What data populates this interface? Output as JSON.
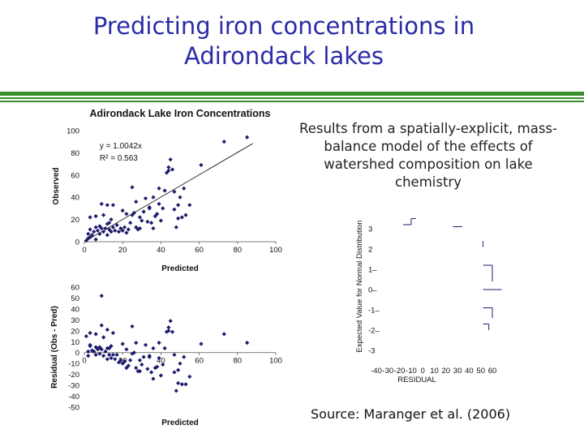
{
  "slide": {
    "title_lines": [
      "Predicting iron concentrations in",
      "Adirondack lakes"
    ],
    "description": "Results from a spatially-explicit, mass-balance model of the effects of watershed composition on lake chemistry",
    "source": "Source:  Maranger et al. (2006)",
    "colors": {
      "title": "#2b2ba8",
      "rule": "#3a8f2e",
      "points": "#1c1c6e"
    }
  },
  "chart_data": [
    {
      "type": "scatter",
      "title": "Adirondack Lake Iron Concentrations",
      "xlabel": "Predicted",
      "ylabel": "Observed",
      "xlim": [
        0,
        100
      ],
      "ylim": [
        0,
        100
      ],
      "xticks": [
        0,
        20,
        40,
        60,
        80,
        100
      ],
      "yticks": [
        0,
        20,
        40,
        60,
        80,
        100
      ],
      "annotations": [
        "y = 1.0042x",
        "R² = 0.563"
      ],
      "trendline": {
        "slope": 1.0042,
        "intercept": 0
      },
      "points": [
        [
          1,
          1
        ],
        [
          2,
          3
        ],
        [
          2,
          7
        ],
        [
          3,
          4
        ],
        [
          4,
          6
        ],
        [
          3,
          11
        ],
        [
          5,
          9
        ],
        [
          6,
          13
        ],
        [
          6,
          2
        ],
        [
          7,
          10
        ],
        [
          8,
          14
        ],
        [
          8,
          7
        ],
        [
          9,
          12
        ],
        [
          10,
          9
        ],
        [
          10,
          24
        ],
        [
          11,
          12
        ],
        [
          12,
          16
        ],
        [
          12,
          6
        ],
        [
          13,
          11
        ],
        [
          14,
          9
        ],
        [
          14,
          20
        ],
        [
          15,
          13
        ],
        [
          16,
          10
        ],
        [
          17,
          15
        ],
        [
          18,
          9
        ],
        [
          19,
          12
        ],
        [
          20,
          10
        ],
        [
          21,
          13
        ],
        [
          22,
          8
        ],
        [
          23,
          11
        ],
        [
          24,
          17
        ],
        [
          25,
          24
        ],
        [
          26,
          26
        ],
        [
          27,
          13
        ],
        [
          28,
          11
        ],
        [
          29,
          22
        ],
        [
          30,
          19
        ],
        [
          31,
          27
        ],
        [
          32,
          39
        ],
        [
          33,
          18
        ],
        [
          34,
          30
        ],
        [
          35,
          17
        ],
        [
          36,
          12
        ],
        [
          37,
          23
        ],
        [
          38,
          25
        ],
        [
          39,
          34
        ],
        [
          40,
          19
        ],
        [
          41,
          30
        ],
        [
          42,
          46
        ],
        [
          43,
          62
        ],
        [
          44,
          67
        ],
        [
          45,
          74
        ],
        [
          46,
          65
        ],
        [
          47,
          29
        ],
        [
          48,
          13
        ],
        [
          49,
          21
        ],
        [
          50,
          40
        ],
        [
          51,
          22
        ],
        [
          53,
          24
        ],
        [
          55,
          33
        ],
        [
          3,
          22
        ],
        [
          6,
          23
        ],
        [
          9,
          34
        ],
        [
          12,
          33
        ],
        [
          13,
          17
        ],
        [
          15,
          33
        ],
        [
          20,
          28
        ],
        [
          22,
          25
        ],
        [
          25,
          49
        ],
        [
          27,
          36
        ],
        [
          29,
          12
        ],
        [
          34,
          31
        ],
        [
          36,
          40
        ],
        [
          39,
          48
        ],
        [
          44,
          64
        ],
        [
          47,
          45
        ],
        [
          49,
          33
        ],
        [
          52,
          48
        ],
        [
          61,
          69
        ],
        [
          73,
          90
        ],
        [
          85,
          94
        ]
      ]
    },
    {
      "type": "scatter",
      "xlabel": "Predicted",
      "ylabel": "Residual (Obs - Pred)",
      "xlim": [
        0,
        100
      ],
      "ylim": [
        -50,
        60
      ],
      "xticks": [
        0,
        20,
        40,
        60,
        80,
        100
      ],
      "yticks": [
        -50,
        -40,
        -30,
        -20,
        -10,
        0,
        10,
        20,
        30,
        40,
        50,
        60
      ],
      "points": [
        [
          1,
          15
        ],
        [
          2,
          1
        ],
        [
          2,
          -3
        ],
        [
          3,
          6
        ],
        [
          4,
          2
        ],
        [
          3,
          7
        ],
        [
          5,
          1
        ],
        [
          6,
          5
        ],
        [
          6,
          -2
        ],
        [
          7,
          3
        ],
        [
          8,
          5
        ],
        [
          8,
          -1
        ],
        [
          9,
          3
        ],
        [
          10,
          -3
        ],
        [
          10,
          14
        ],
        [
          11,
          1
        ],
        [
          12,
          4
        ],
        [
          12,
          -6
        ],
        [
          13,
          -2
        ],
        [
          14,
          -5
        ],
        [
          14,
          6
        ],
        [
          15,
          -2
        ],
        [
          16,
          -6
        ],
        [
          17,
          -2
        ],
        [
          18,
          -9
        ],
        [
          19,
          -7
        ],
        [
          20,
          -10
        ],
        [
          21,
          -8
        ],
        [
          22,
          -14
        ],
        [
          23,
          -12
        ],
        [
          24,
          -7
        ],
        [
          25,
          -1
        ],
        [
          26,
          0
        ],
        [
          27,
          -14
        ],
        [
          28,
          -17
        ],
        [
          29,
          -7
        ],
        [
          30,
          -11
        ],
        [
          31,
          -4
        ],
        [
          32,
          7
        ],
        [
          33,
          -15
        ],
        [
          34,
          -4
        ],
        [
          35,
          -18
        ],
        [
          36,
          -24
        ],
        [
          37,
          -14
        ],
        [
          38,
          -13
        ],
        [
          39,
          -5
        ],
        [
          40,
          -21
        ],
        [
          41,
          -11
        ],
        [
          42,
          4
        ],
        [
          43,
          19
        ],
        [
          44,
          23
        ],
        [
          45,
          29
        ],
        [
          46,
          19
        ],
        [
          47,
          -18
        ],
        [
          48,
          -35
        ],
        [
          49,
          -28
        ],
        [
          50,
          -10
        ],
        [
          51,
          -29
        ],
        [
          53,
          -29
        ],
        [
          55,
          -22
        ],
        [
          3,
          18
        ],
        [
          6,
          17
        ],
        [
          9,
          25
        ],
        [
          12,
          21
        ],
        [
          13,
          4
        ],
        [
          15,
          18
        ],
        [
          20,
          8
        ],
        [
          22,
          3
        ],
        [
          25,
          24
        ],
        [
          27,
          9
        ],
        [
          29,
          -17
        ],
        [
          34,
          -3
        ],
        [
          36,
          4
        ],
        [
          39,
          9
        ],
        [
          44,
          20
        ],
        [
          47,
          -2
        ],
        [
          49,
          -16
        ],
        [
          52,
          -4
        ],
        [
          61,
          8
        ],
        [
          73,
          17
        ],
        [
          85,
          9
        ],
        [
          9,
          52
        ]
      ]
    },
    {
      "type": "line",
      "title": "",
      "xlabel": "RESIDUAL",
      "ylabel": "Expected Value for Normal Distribution",
      "xlim": [
        -40,
        60
      ],
      "ylim": [
        -3,
        3
      ],
      "xticks": [
        -40,
        -30,
        -20,
        -10,
        0,
        10,
        20,
        30,
        40,
        50,
        60
      ],
      "yticks": [
        -3,
        -2,
        -1,
        0,
        1,
        2,
        3
      ],
      "segments": [
        [
          [
            -17,
            3.2
          ],
          [
            -10,
            3.2
          ]
        ],
        [
          [
            -10,
            3.2
          ],
          [
            -10,
            3.5
          ]
        ],
        [
          [
            -10,
            3.5
          ],
          [
            -6,
            3.5
          ]
        ],
        [
          [
            26,
            3.1
          ],
          [
            34,
            3.1
          ]
        ],
        [
          [
            52,
            2.4
          ],
          [
            52,
            2.1
          ]
        ],
        [
          [
            52,
            1.2
          ],
          [
            60,
            1.2
          ]
        ],
        [
          [
            60,
            1.2
          ],
          [
            60,
            0.4
          ]
        ],
        [
          [
            52,
            0.0
          ],
          [
            68,
            0.0
          ]
        ],
        [
          [
            52,
            -0.9
          ],
          [
            60,
            -0.9
          ]
        ],
        [
          [
            60,
            -0.9
          ],
          [
            60,
            -1.4
          ]
        ],
        [
          [
            52,
            -1.7
          ],
          [
            57,
            -1.7
          ]
        ],
        [
          [
            57,
            -1.7
          ],
          [
            57,
            -2.0
          ]
        ]
      ]
    }
  ]
}
